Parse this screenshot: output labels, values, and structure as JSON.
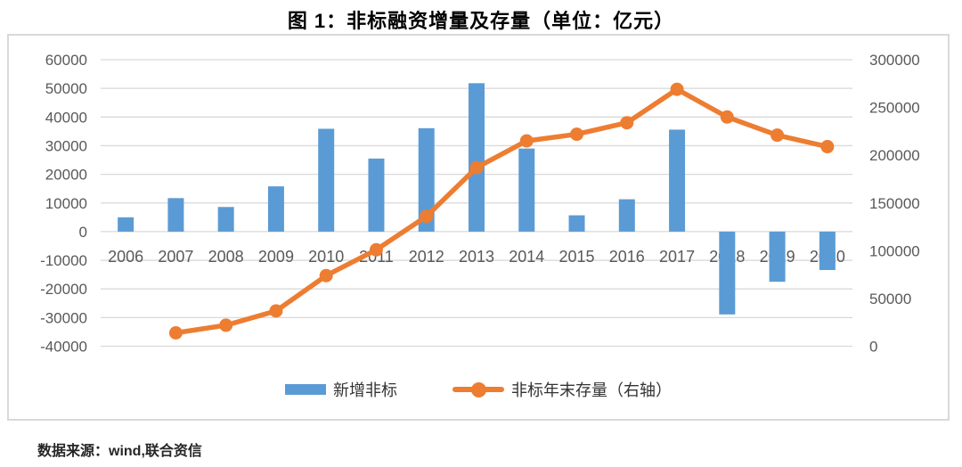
{
  "title": "图 1：非标融资增量及存量（单位：亿元）",
  "footer": "数据来源：wind,联合资信",
  "colors": {
    "bar": "#5B9BD5",
    "line": "#ED7D31",
    "grid": "#D9D9D9",
    "tick_text": "#595959",
    "frame_border": "#D9D9D9",
    "title_text": "#000000",
    "footer_text": "#262626"
  },
  "chart_data": {
    "type": "bar+line combo",
    "title": "图 1：非标融资增量及存量（单位：亿元）",
    "categories": [
      "2006",
      "2007",
      "2008",
      "2009",
      "2010",
      "2011",
      "2012",
      "2013",
      "2014",
      "2015",
      "2016",
      "2017",
      "2018",
      "2019",
      "2020"
    ],
    "series": [
      {
        "name": "新增非标",
        "type": "bar",
        "axis": "left",
        "values": [
          5000,
          11700,
          8600,
          15800,
          35900,
          25500,
          36100,
          51800,
          29000,
          5700,
          11300,
          35600,
          -28900,
          -17500,
          -13400
        ]
      },
      {
        "name": "非标年末存量（右轴）",
        "type": "line",
        "axis": "right",
        "values": [
          null,
          14000,
          22000,
          37000,
          74000,
          101000,
          136000,
          187000,
          215000,
          222000,
          234000,
          269000,
          240000,
          221000,
          209000
        ]
      }
    ],
    "left_axis": {
      "min": -40000,
      "max": 60000,
      "step": 10000,
      "tick_labels": [
        "60000",
        "50000",
        "40000",
        "30000",
        "20000",
        "10000",
        "0",
        "-10000",
        "-20000",
        "-30000",
        "-40000"
      ]
    },
    "right_axis": {
      "min": 0,
      "max": 300000,
      "step": 50000,
      "tick_labels": [
        "300000",
        "250000",
        "200000",
        "150000",
        "100000",
        "50000",
        "0"
      ]
    },
    "grid": "horizontal",
    "legend_position": "bottom"
  }
}
